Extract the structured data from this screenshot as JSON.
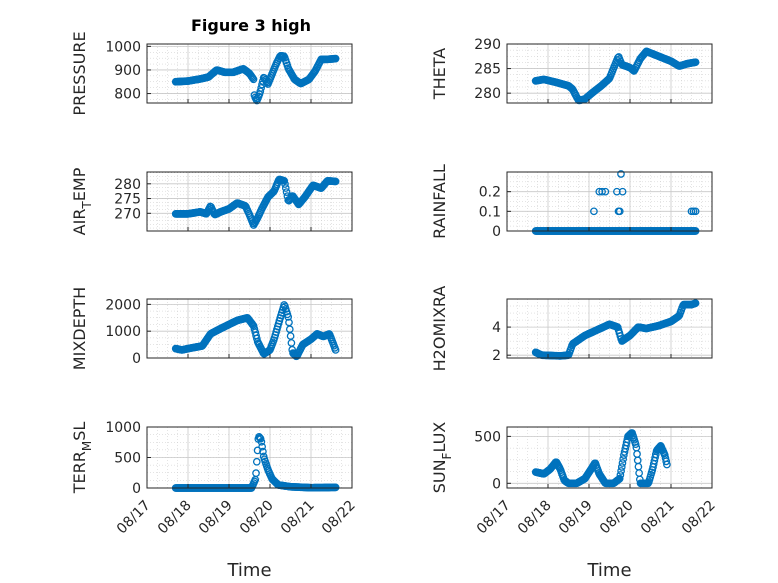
{
  "figure_title": "Figure 3 high",
  "colors": {
    "marker": "#0072BD",
    "axis": "#262626",
    "grid": "#c8c8c8"
  },
  "chart_data": [
    {
      "type": "scatter",
      "ylabel_main": "PRESSURE",
      "ylabel_sub": "",
      "x_domain": [
        17,
        22
      ],
      "ylim": [
        760,
        1010
      ],
      "yticks": [
        {
          "v": 800,
          "t": "800"
        },
        {
          "v": 900,
          "t": "900"
        },
        {
          "v": 1000,
          "t": "1000"
        }
      ],
      "xticks": [],
      "xlabel": "",
      "segments": [
        [
          17.7,
          850
        ],
        [
          18.0,
          853
        ],
        [
          18.3,
          862
        ],
        [
          18.5,
          870
        ],
        [
          18.7,
          900
        ],
        [
          18.9,
          890
        ],
        [
          19.1,
          890
        ],
        [
          19.35,
          905
        ],
        [
          19.5,
          885
        ],
        [
          19.6,
          860
        ],
        [
          19.62,
          790
        ],
        [
          19.68,
          770
        ],
        [
          19.75,
          800
        ],
        [
          19.85,
          870
        ],
        [
          19.95,
          840
        ],
        [
          20.15,
          925
        ],
        [
          20.25,
          960
        ],
        [
          20.35,
          958
        ],
        [
          20.45,
          905
        ],
        [
          20.6,
          860
        ],
        [
          20.75,
          842
        ],
        [
          20.95,
          860
        ],
        [
          21.1,
          895
        ],
        [
          21.25,
          945
        ],
        [
          21.4,
          945
        ],
        [
          21.6,
          948
        ]
      ],
      "n": 190
    },
    {
      "type": "scatter",
      "ylabel_main": "THETA",
      "ylabel_sub": "",
      "x_domain": [
        17,
        22
      ],
      "ylim": [
        278,
        290
      ],
      "yticks": [
        {
          "v": 280,
          "t": "280"
        },
        {
          "v": 285,
          "t": "285"
        },
        {
          "v": 290,
          "t": "290"
        }
      ],
      "xticks": [],
      "xlabel": "",
      "segments": [
        [
          17.7,
          282.5
        ],
        [
          17.9,
          282.8
        ],
        [
          18.2,
          282.2
        ],
        [
          18.5,
          281.5
        ],
        [
          18.6,
          280.8
        ],
        [
          18.7,
          279.2
        ],
        [
          18.75,
          278.5
        ],
        [
          18.9,
          278.8
        ],
        [
          19.1,
          280.2
        ],
        [
          19.3,
          281.5
        ],
        [
          19.5,
          283.0
        ],
        [
          19.62,
          285.5
        ],
        [
          19.72,
          287.5
        ],
        [
          19.8,
          285.8
        ],
        [
          20.0,
          285.2
        ],
        [
          20.1,
          284.5
        ],
        [
          20.25,
          287.0
        ],
        [
          20.4,
          288.5
        ],
        [
          20.7,
          287.5
        ],
        [
          21.0,
          286.5
        ],
        [
          21.2,
          285.5
        ],
        [
          21.4,
          286.0
        ],
        [
          21.6,
          286.3
        ]
      ],
      "n": 180
    },
    {
      "type": "scatter",
      "ylabel_main": "AIR",
      "ylabel_sub": "T",
      "ylabel_end": "EMP",
      "x_domain": [
        17,
        22
      ],
      "ylim": [
        264,
        284
      ],
      "yticks": [
        {
          "v": 270,
          "t": "270"
        },
        {
          "v": 275,
          "t": "275"
        },
        {
          "v": 280,
          "t": "280"
        }
      ],
      "xticks": [],
      "xlabel": "",
      "segments": [
        [
          17.7,
          269.8
        ],
        [
          18.0,
          269.8
        ],
        [
          18.3,
          270.5
        ],
        [
          18.45,
          269.8
        ],
        [
          18.55,
          272.5
        ],
        [
          18.65,
          269.5
        ],
        [
          18.8,
          270.5
        ],
        [
          19.0,
          271.5
        ],
        [
          19.2,
          273.5
        ],
        [
          19.4,
          272.5
        ],
        [
          19.5,
          269.5
        ],
        [
          19.6,
          266.0
        ],
        [
          19.7,
          268.5
        ],
        [
          19.8,
          271.5
        ],
        [
          19.95,
          275.5
        ],
        [
          20.1,
          277.5
        ],
        [
          20.22,
          281.5
        ],
        [
          20.35,
          281.0
        ],
        [
          20.45,
          274.0
        ],
        [
          20.55,
          276.0
        ],
        [
          20.7,
          273.0
        ],
        [
          20.85,
          275.5
        ],
        [
          21.05,
          279.5
        ],
        [
          21.25,
          278.5
        ],
        [
          21.4,
          281.0
        ],
        [
          21.6,
          280.8
        ]
      ],
      "n": 200
    },
    {
      "type": "scatter",
      "ylabel_main": "RAINFALL",
      "ylabel_sub": "",
      "x_domain": [
        17,
        22
      ],
      "ylim": [
        0,
        0.3
      ],
      "yticks": [
        {
          "v": 0,
          "t": "0"
        },
        {
          "v": 0.1,
          "t": "0.1"
        },
        {
          "v": 0.2,
          "t": "0.2"
        }
      ],
      "xticks": [],
      "xlabel": "",
      "segments": [
        [
          17.7,
          0
        ],
        [
          21.6,
          0
        ]
      ],
      "n": 230,
      "extra_points": [
        [
          19.12,
          0.1
        ],
        [
          19.25,
          0.2
        ],
        [
          19.32,
          0.2
        ],
        [
          19.4,
          0.2
        ],
        [
          19.68,
          0.2
        ],
        [
          19.72,
          0.1
        ],
        [
          19.75,
          0.1
        ],
        [
          19.78,
          0.29
        ],
        [
          19.82,
          0.2
        ],
        [
          21.5,
          0.1
        ],
        [
          21.55,
          0.1
        ],
        [
          21.6,
          0.1
        ]
      ]
    },
    {
      "type": "scatter",
      "ylabel_main": "MIXDEPTH",
      "ylabel_sub": "",
      "x_domain": [
        17,
        22
      ],
      "ylim": [
        0,
        2200
      ],
      "yticks": [
        {
          "v": 0,
          "t": "0"
        },
        {
          "v": 1000,
          "t": "1000"
        },
        {
          "v": 2000,
          "t": "2000"
        }
      ],
      "xticks": [],
      "xlabel": "",
      "segments": [
        [
          17.7,
          350
        ],
        [
          17.85,
          300
        ],
        [
          18.0,
          350
        ],
        [
          18.35,
          450
        ],
        [
          18.55,
          900
        ],
        [
          18.8,
          1100
        ],
        [
          19.2,
          1400
        ],
        [
          19.45,
          1500
        ],
        [
          19.6,
          1200
        ],
        [
          19.7,
          600
        ],
        [
          19.85,
          150
        ],
        [
          20.0,
          300
        ],
        [
          20.1,
          700
        ],
        [
          20.25,
          1500
        ],
        [
          20.35,
          2000
        ],
        [
          20.45,
          1500
        ],
        [
          20.55,
          200
        ],
        [
          20.65,
          50
        ],
        [
          20.8,
          500
        ],
        [
          21.0,
          700
        ],
        [
          21.15,
          900
        ],
        [
          21.3,
          800
        ],
        [
          21.45,
          900
        ],
        [
          21.6,
          300
        ]
      ],
      "n": 200
    },
    {
      "type": "scatter",
      "ylabel_main": "H2OMIXRA",
      "ylabel_sub": "",
      "x_domain": [
        17,
        22
      ],
      "ylim": [
        1.8,
        6.0
      ],
      "yticks": [
        {
          "v": 2,
          "t": "2"
        },
        {
          "v": 4,
          "t": "4"
        }
      ],
      "xticks": [],
      "xlabel": "",
      "segments": [
        [
          17.7,
          2.2
        ],
        [
          17.85,
          2.0
        ],
        [
          18.3,
          1.95
        ],
        [
          18.5,
          2.0
        ],
        [
          18.6,
          2.8
        ],
        [
          18.9,
          3.4
        ],
        [
          19.2,
          3.8
        ],
        [
          19.5,
          4.2
        ],
        [
          19.7,
          4.0
        ],
        [
          19.8,
          3.0
        ],
        [
          20.0,
          3.4
        ],
        [
          20.2,
          4.0
        ],
        [
          20.4,
          3.9
        ],
        [
          20.7,
          4.1
        ],
        [
          21.0,
          4.4
        ],
        [
          21.2,
          4.8
        ],
        [
          21.3,
          5.6
        ],
        [
          21.5,
          5.6
        ],
        [
          21.6,
          5.7
        ]
      ],
      "n": 190
    },
    {
      "type": "scatter",
      "ylabel_main": "TERR",
      "ylabel_sub": "M",
      "ylabel_end": "SL",
      "x_domain": [
        17,
        22
      ],
      "ylim": [
        0,
        1000
      ],
      "yticks": [
        {
          "v": 0,
          "t": "0"
        },
        {
          "v": 500,
          "t": "500"
        },
        {
          "v": 1000,
          "t": "1000"
        }
      ],
      "xticks": [
        {
          "v": 17,
          "t": "08/17"
        },
        {
          "v": 18,
          "t": "08/18"
        },
        {
          "v": 19,
          "t": "08/19"
        },
        {
          "v": 20,
          "t": "08/20"
        },
        {
          "v": 21,
          "t": "08/21"
        },
        {
          "v": 22,
          "t": "08/22"
        }
      ],
      "xlabel": "Time",
      "segments": [
        [
          17.7,
          0
        ],
        [
          19.55,
          0
        ],
        [
          19.65,
          150
        ],
        [
          19.72,
          850
        ],
        [
          19.78,
          800
        ],
        [
          19.85,
          500
        ],
        [
          19.95,
          300
        ],
        [
          20.05,
          150
        ],
        [
          20.2,
          50
        ],
        [
          20.5,
          20
        ],
        [
          21.0,
          5
        ],
        [
          21.6,
          10
        ]
      ],
      "n": 210
    },
    {
      "type": "scatter",
      "ylabel_main": "SUN",
      "ylabel_sub": "F",
      "ylabel_end": "LUX",
      "x_domain": [
        17,
        22
      ],
      "ylim": [
        -50,
        600
      ],
      "yticks": [
        {
          "v": 0,
          "t": "0"
        },
        {
          "v": 500,
          "t": "500"
        }
      ],
      "xticks": [
        {
          "v": 17,
          "t": "08/17"
        },
        {
          "v": 18,
          "t": "08/18"
        },
        {
          "v": 19,
          "t": "08/19"
        },
        {
          "v": 20,
          "t": "08/20"
        },
        {
          "v": 21,
          "t": "08/21"
        },
        {
          "v": 22,
          "t": "08/22"
        }
      ],
      "xlabel": "Time",
      "segments": [
        [
          17.7,
          120
        ],
        [
          17.9,
          100
        ],
        [
          18.05,
          150
        ],
        [
          18.2,
          230
        ],
        [
          18.3,
          150
        ],
        [
          18.4,
          30
        ],
        [
          18.5,
          0
        ],
        [
          18.7,
          0
        ],
        [
          18.9,
          50
        ],
        [
          19.05,
          150
        ],
        [
          19.15,
          220
        ],
        [
          19.25,
          100
        ],
        [
          19.4,
          0
        ],
        [
          19.6,
          0
        ],
        [
          19.75,
          50
        ],
        [
          19.85,
          300
        ],
        [
          19.95,
          500
        ],
        [
          20.05,
          540
        ],
        [
          20.15,
          400
        ],
        [
          20.25,
          0
        ],
        [
          20.45,
          0
        ],
        [
          20.55,
          150
        ],
        [
          20.65,
          350
        ],
        [
          20.75,
          400
        ],
        [
          20.85,
          300
        ],
        [
          20.9,
          200
        ]
      ],
      "n": 190
    }
  ]
}
